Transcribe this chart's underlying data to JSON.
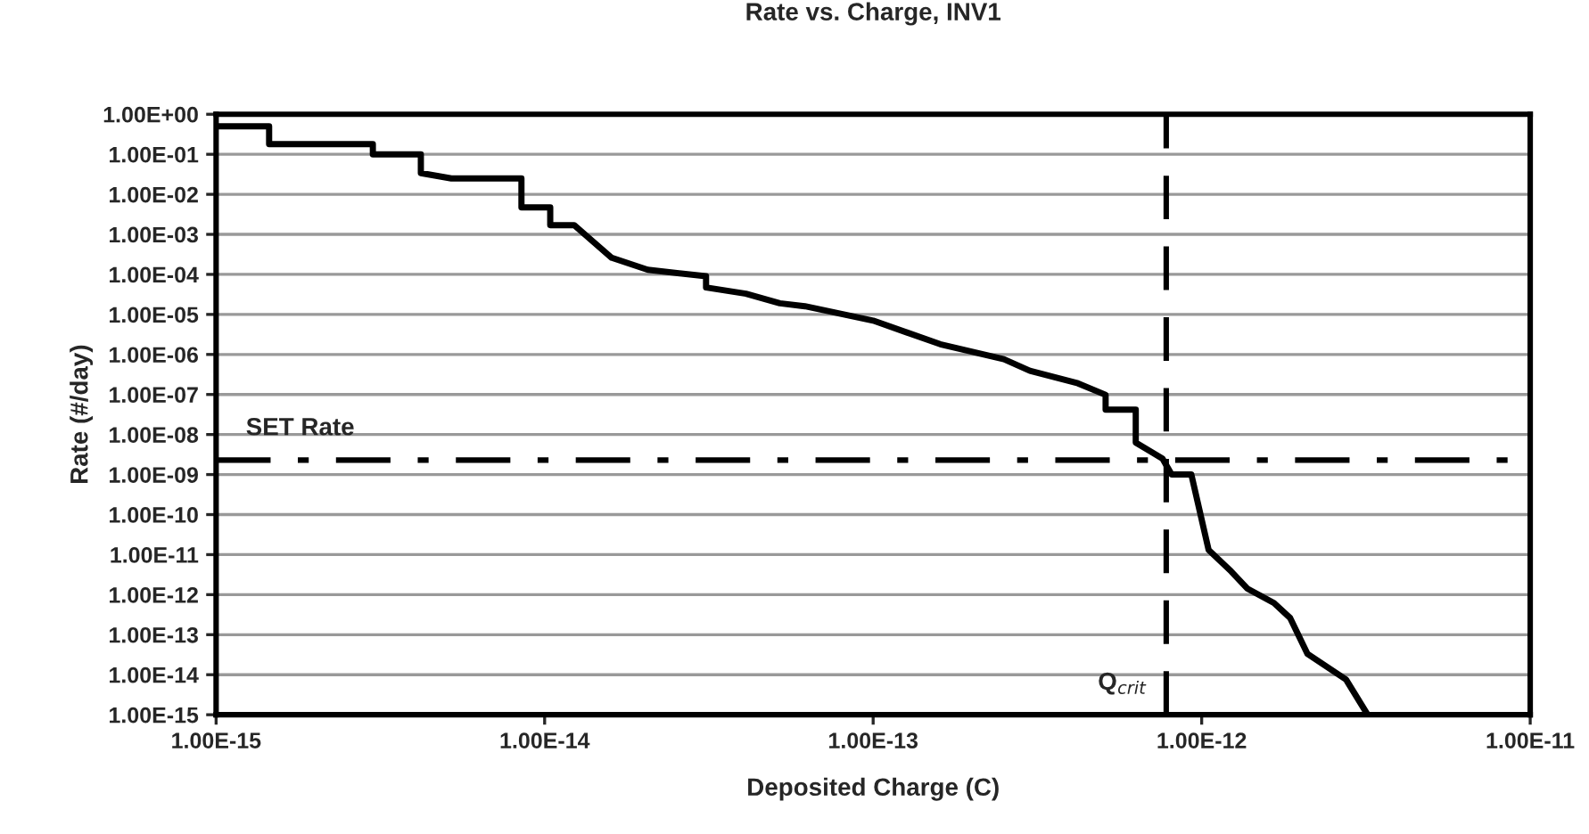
{
  "chart_data": {
    "type": "line",
    "title": "Rate vs. Charge, INV1",
    "xlabel": "Deposited Charge (C)",
    "ylabel": "Rate (#/day)",
    "log": "xy",
    "grid": "y",
    "legend": false,
    "marker": "none",
    "xlim": [
      1e-15,
      1e-11
    ],
    "xticks": [
      {
        "value": 1e-15,
        "label": "1.00E-15"
      },
      {
        "value": 1e-14,
        "label": "1.00E-14"
      },
      {
        "value": 1e-13,
        "label": "1.00E-13"
      },
      {
        "value": 1e-12,
        "label": "1.00E-12"
      },
      {
        "value": 1e-11,
        "label": "1.00E-11"
      }
    ],
    "ylim": [
      1e-15,
      1
    ],
    "yticks": [
      {
        "value": 1e-15,
        "label": "1.00E-15"
      },
      {
        "value": 1e-14,
        "label": "1.00E-14"
      },
      {
        "value": 1e-13,
        "label": "1.00E-13"
      },
      {
        "value": 1e-12,
        "label": "1.00E-12"
      },
      {
        "value": 1e-11,
        "label": "1.00E-11"
      },
      {
        "value": 1e-10,
        "label": "1.00E-10"
      },
      {
        "value": 1e-09,
        "label": "1.00E-09"
      },
      {
        "value": 1e-08,
        "label": "1.00E-08"
      },
      {
        "value": 1e-07,
        "label": "1.00E-07"
      },
      {
        "value": 1e-06,
        "label": "1.00E-06"
      },
      {
        "value": 1e-05,
        "label": "1.00E-05"
      },
      {
        "value": 0.0001,
        "label": "1.00E-04"
      },
      {
        "value": 0.001,
        "label": "1.00E-03"
      },
      {
        "value": 0.01,
        "label": "1.00E-02"
      },
      {
        "value": 0.1,
        "label": "1.00E-01"
      },
      {
        "value": 1,
        "label": "1.00E+00"
      }
    ],
    "series": [
      {
        "color": "#000000",
        "line_style": "solid",
        "x": [
          1e-15,
          1.45e-15,
          1.45e-15,
          3e-15,
          3e-15,
          4.2e-15,
          4.2e-15,
          5.2e-15,
          8.5e-15,
          8.5e-15,
          1.04e-14,
          1.04e-14,
          1.23e-14,
          1.6e-14,
          2.06e-14,
          3.1e-14,
          3.1e-14,
          4.1e-14,
          5.2e-14,
          6.2e-14,
          1e-13,
          1.6e-13,
          2.5e-13,
          3e-13,
          4.2e-13,
          5.1e-13,
          5.1e-13,
          6.3e-13,
          6.3e-13,
          7.6e-13,
          8.1e-13,
          9.3e-13,
          1.05e-12,
          1.23e-12,
          1.38e-12,
          1.66e-12,
          1.86e-12,
          2.1e-12,
          2.75e-12,
          3.2e-12
        ],
        "values": [
          0.5,
          0.5,
          0.18,
          0.18,
          0.1,
          0.1,
          0.034,
          0.025,
          0.025,
          0.0047,
          0.0047,
          0.0017,
          0.0017,
          0.00026,
          0.00013,
          9e-05,
          4.7e-05,
          3.3e-05,
          1.9e-05,
          1.6e-05,
          7e-06,
          1.8e-06,
          7.6e-07,
          3.9e-07,
          1.9e-07,
          9.8e-08,
          4.2e-08,
          4.2e-08,
          6.3e-09,
          2.5e-09,
          1e-09,
          1e-09,
          1.3e-11,
          3.8e-12,
          1.4e-12,
          6.2e-13,
          2.6e-13,
          3.3e-14,
          7.6e-15,
          1e-15
        ]
      }
    ],
    "ref_lines": [
      {
        "axis": "y",
        "value": 2.3e-09,
        "label": "SET Rate",
        "color": "#000000",
        "line_style": "dashdot"
      },
      {
        "axis": "x",
        "value": 7.8e-13,
        "label": "Q$_{crit}$",
        "color": "#000000",
        "line_style": "dashed"
      }
    ]
  }
}
